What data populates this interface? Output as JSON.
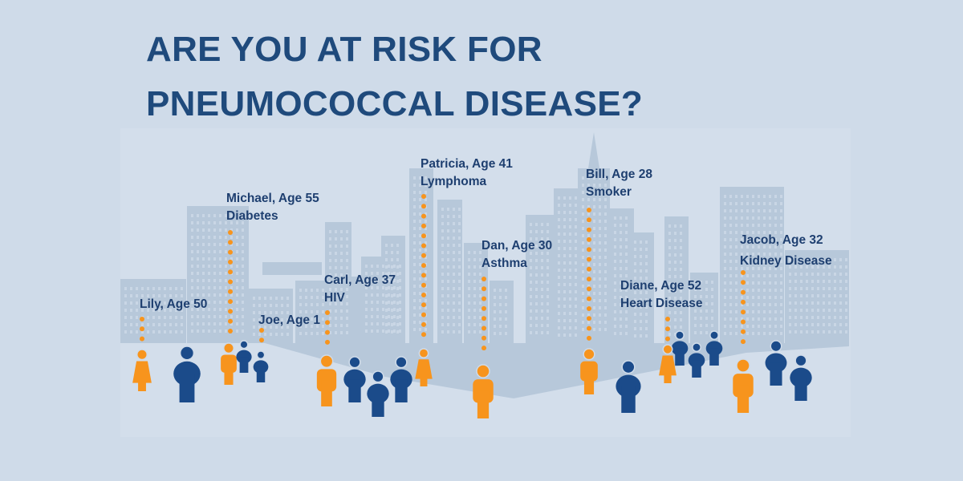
{
  "title": {
    "line1": "ARE YOU AT RISK FOR",
    "line2": "PNEUMOCOCCAL DISEASE?"
  },
  "colors": {
    "title": "#1f4a7c",
    "highlighted_person": "#f7941d",
    "other_person": "#1b4b8a",
    "buildings": "#b6c7da",
    "background": "#cfdbe9"
  },
  "people": [
    {
      "name_age": "Lily, Age 50",
      "condition": ""
    },
    {
      "name_age": "Michael, Age 55",
      "condition": "Diabetes"
    },
    {
      "name_age": "Joe, Age 1",
      "condition": ""
    },
    {
      "name_age": "Carl, Age 37",
      "condition": "HIV"
    },
    {
      "name_age": "Patricia, Age 41",
      "condition": "Lymphoma"
    },
    {
      "name_age": "Dan, Age 30",
      "condition": "Asthma"
    },
    {
      "name_age": "Bill, Age 28",
      "condition": "Smoker"
    },
    {
      "name_age": "Diane, Age 52",
      "condition": "Heart Disease"
    },
    {
      "name_age": "Jacob, Age 32",
      "condition": "Kidney Disease"
    }
  ]
}
